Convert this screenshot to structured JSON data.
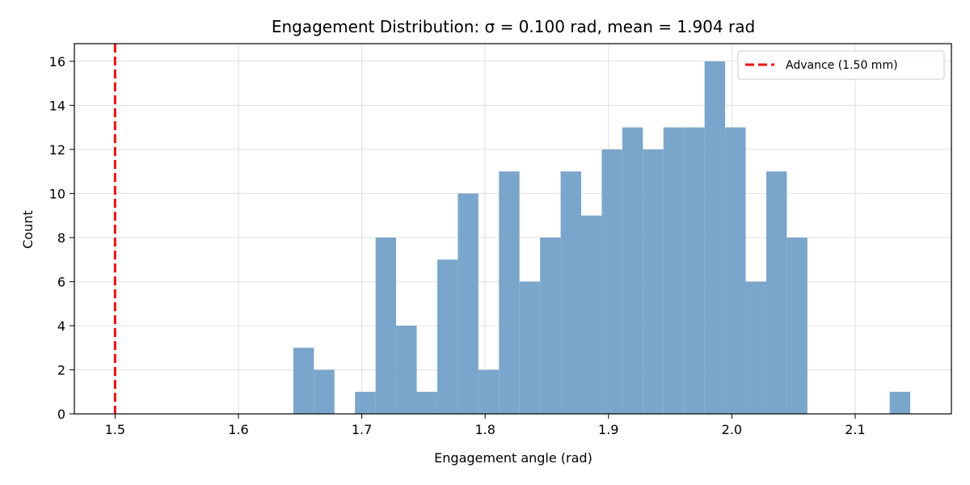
{
  "chart_data": {
    "type": "bar",
    "title": "Engagement Distribution: σ = 0.100 rad, mean = 1.904 rad",
    "xlabel": "Engagement angle (rad)",
    "ylabel": "Count",
    "xlim": [
      1.467,
      2.178
    ],
    "ylim": [
      0,
      16.8
    ],
    "x_ticks": [
      1.5,
      1.6,
      1.7,
      1.8,
      1.9,
      2.0,
      2.1
    ],
    "x_tick_labels": [
      "1.5",
      "1.6",
      "1.7",
      "1.8",
      "1.9",
      "2.0",
      "2.1"
    ],
    "y_ticks": [
      0,
      2,
      4,
      6,
      8,
      10,
      12,
      14,
      16
    ],
    "y_tick_labels": [
      "0",
      "2",
      "4",
      "6",
      "8",
      "10",
      "12",
      "14",
      "16"
    ],
    "grid": true,
    "bin_start": 1.6445,
    "bin_width": 0.01667,
    "counts": [
      3,
      2,
      0,
      1,
      8,
      4,
      1,
      7,
      10,
      2,
      11,
      6,
      8,
      11,
      9,
      12,
      13,
      12,
      13,
      13,
      16,
      13,
      6,
      11,
      8,
      0,
      0,
      0,
      0,
      1
    ],
    "bar_color": "#7ba6cc",
    "reference_line": {
      "x": 1.5,
      "label": "Advance (1.50 mm)",
      "color": "#ee1111",
      "style": "dashed"
    },
    "legend": {
      "placement": "top-right",
      "entries": [
        "Advance (1.50 mm)"
      ]
    }
  }
}
